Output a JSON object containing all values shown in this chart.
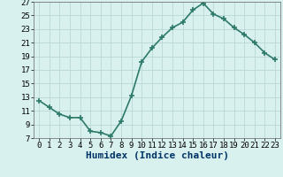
{
  "x": [
    0,
    1,
    2,
    3,
    4,
    5,
    6,
    7,
    8,
    9,
    10,
    11,
    12,
    13,
    14,
    15,
    16,
    17,
    18,
    19,
    20,
    21,
    22,
    23
  ],
  "y": [
    12.5,
    11.5,
    10.5,
    10.0,
    10.0,
    8.0,
    7.8,
    7.3,
    9.5,
    13.2,
    18.2,
    20.2,
    21.8,
    23.2,
    24.0,
    25.8,
    26.8,
    25.2,
    24.5,
    23.2,
    22.2,
    21.0,
    19.5,
    18.5
  ],
  "xlabel": "Humidex (Indice chaleur)",
  "xlim": [
    -0.5,
    23.5
  ],
  "ylim": [
    7,
    27
  ],
  "yticks": [
    7,
    9,
    11,
    13,
    15,
    17,
    19,
    21,
    23,
    25,
    27
  ],
  "xticks": [
    0,
    1,
    2,
    3,
    4,
    5,
    6,
    7,
    8,
    9,
    10,
    11,
    12,
    13,
    14,
    15,
    16,
    17,
    18,
    19,
    20,
    21,
    22,
    23
  ],
  "line_color": "#2d7a6a",
  "marker": "+",
  "marker_size": 5,
  "bg_color": "#d8f0ee",
  "grid_color": "#b8d8d4",
  "xlabel_color": "#003366",
  "xlabel_fontsize": 8,
  "tick_fontsize": 6.5,
  "linewidth": 1.2
}
